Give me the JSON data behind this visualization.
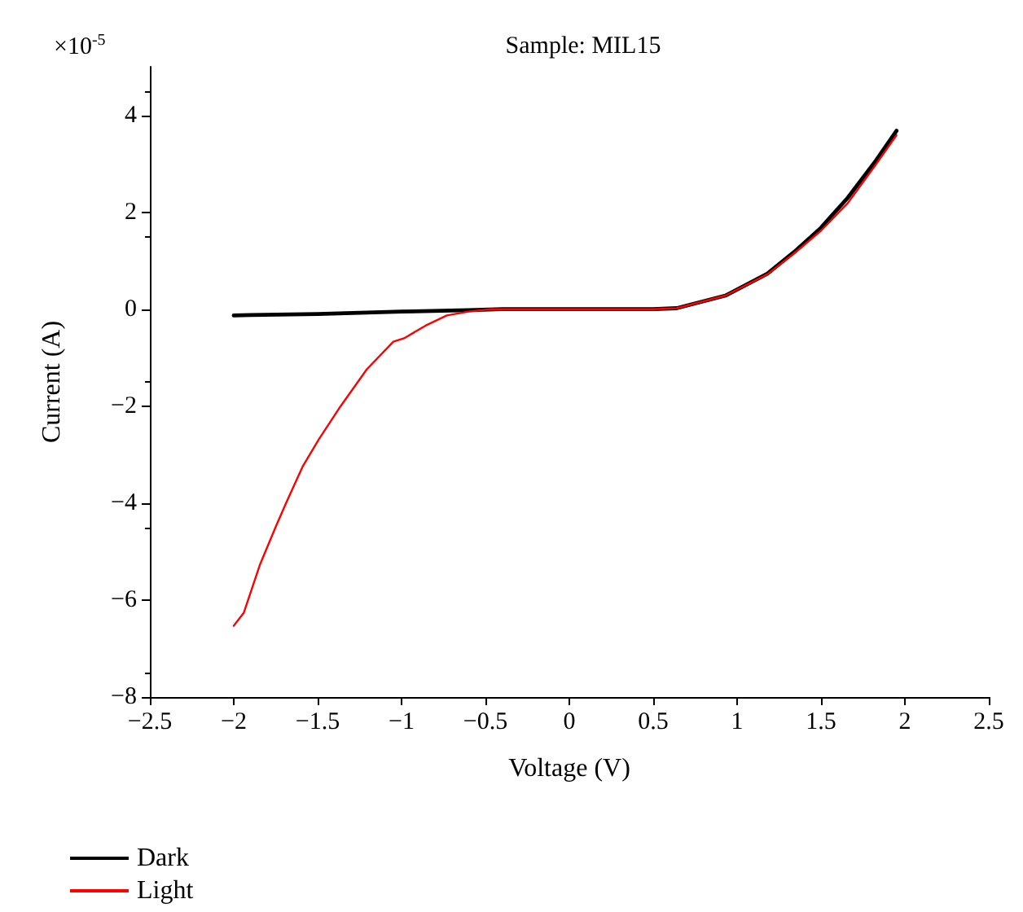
{
  "chart_data": {
    "type": "line",
    "title": "Sample: MIL15",
    "xlabel": "Voltage (V)",
    "ylabel": "Current (A)",
    "annotations": [
      "×10$^{-5}$"
    ],
    "xlim": [
      -2.5,
      2.5
    ],
    "xticks": [
      -2.5,
      -2,
      -1.5,
      -1,
      -0.5,
      0,
      0.5,
      1,
      1.5,
      2,
      2.5
    ],
    "ylim": [
      -8,
      5
    ],
    "yticks": [
      -8,
      -6,
      -4,
      -2,
      0,
      2,
      4
    ],
    "grid": false,
    "legend": "bottom left",
    "marker": "none",
    "line_style": "solid",
    "series": [
      {
        "name": "Dark",
        "color": "#000000",
        "x": [
          -2,
          -1.9,
          -1.5,
          -1,
          -0.6,
          -0.4,
          0,
          0.5,
          0.64,
          0.93,
          1.18,
          1.34,
          1.5,
          1.66,
          1.82,
          1.95
        ],
        "values": [
          -0.13,
          -0.12,
          -0.1,
          -0.05,
          -0.02,
          0,
          0,
          0,
          0.02,
          0.28,
          0.73,
          1.18,
          1.68,
          2.3,
          3.03,
          3.68
        ]
      },
      {
        "name": "Light",
        "color": "#ff0000",
        "x": [
          -2,
          -1.94,
          -1.845,
          -1.75,
          -1.686,
          -1.59,
          -1.494,
          -1.367,
          -1.207,
          -1.049,
          -0.985,
          -0.857,
          -0.73,
          -0.6,
          -0.47,
          0,
          0.5,
          0.64,
          0.93,
          1.18,
          1.34,
          1.5,
          1.66,
          1.82,
          1.95
        ],
        "values": [
          -6.53,
          -6.26,
          -5.28,
          -4.49,
          -3.98,
          -3.25,
          -2.69,
          -2.02,
          -1.24,
          -0.67,
          -0.6,
          -0.34,
          -0.13,
          -0.05,
          0,
          0,
          0,
          0.02,
          0.28,
          0.72,
          1.15,
          1.62,
          2.19,
          2.95,
          3.59
        ]
      }
    ]
  }
}
